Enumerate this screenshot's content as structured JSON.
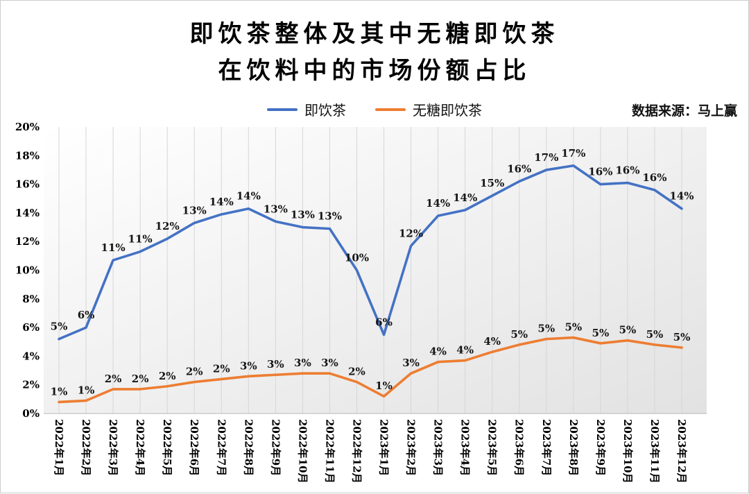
{
  "header": {
    "title_line1": "即饮茶整体及其中无糖即饮茶",
    "title_line2": "在饮料中的市场份额占比",
    "source": "数据来源：马上赢"
  },
  "chart_data": {
    "type": "line",
    "title": "即饮茶整体及其中无糖即饮茶在饮料中的市场份额占比",
    "legend_position": "top",
    "grid": "vertical",
    "ylim": [
      0,
      20
    ],
    "ytick_step": 2,
    "ytick_labels": [
      "0%",
      "2%",
      "4%",
      "6%",
      "8%",
      "10%",
      "12%",
      "14%",
      "16%",
      "18%",
      "20%"
    ],
    "categories": [
      "2022年1月",
      "2022年2月",
      "2022年3月",
      "2022年4月",
      "2022年5月",
      "2022年6月",
      "2022年7月",
      "2022年8月",
      "2022年9月",
      "2022年10月",
      "2022年11月",
      "2022年12月",
      "2023年1月",
      "2023年2月",
      "2023年3月",
      "2023年4月",
      "2023年5月",
      "2023年6月",
      "2023年7月",
      "2023年8月",
      "2023年9月",
      "2023年10月",
      "2023年11月",
      "2023年12月"
    ],
    "series": [
      {
        "name": "即饮茶",
        "color": "#4472C4",
        "values": [
          5.2,
          6.0,
          10.7,
          11.3,
          12.2,
          13.3,
          13.9,
          14.3,
          13.4,
          13.0,
          12.9,
          10.0,
          5.5,
          11.7,
          13.8,
          14.2,
          15.2,
          16.2,
          17.0,
          17.3,
          16.0,
          16.1,
          15.6,
          14.3
        ],
        "labels": [
          "5%",
          "6%",
          "11%",
          "11%",
          "12%",
          "13%",
          "14%",
          "14%",
          "13%",
          "13%",
          "13%",
          "10%",
          "6%",
          "12%",
          "14%",
          "14%",
          "15%",
          "16%",
          "17%",
          "17%",
          "16%",
          "16%",
          "16%",
          "14%"
        ]
      },
      {
        "name": "无糖即饮茶",
        "color": "#ED7D31",
        "values": [
          0.8,
          0.9,
          1.7,
          1.7,
          1.9,
          2.2,
          2.4,
          2.6,
          2.7,
          2.8,
          2.8,
          2.2,
          1.2,
          2.8,
          3.6,
          3.7,
          4.3,
          4.8,
          5.2,
          5.3,
          4.9,
          5.1,
          4.8,
          4.6
        ],
        "labels": [
          "1%",
          "1%",
          "2%",
          "2%",
          "2%",
          "2%",
          "2%",
          "3%",
          "3%",
          "3%",
          "3%",
          "2%",
          "1%",
          "3%",
          "4%",
          "4%",
          "4%",
          "5%",
          "5%",
          "5%",
          "5%",
          "5%",
          "5%",
          "5%"
        ]
      }
    ]
  }
}
